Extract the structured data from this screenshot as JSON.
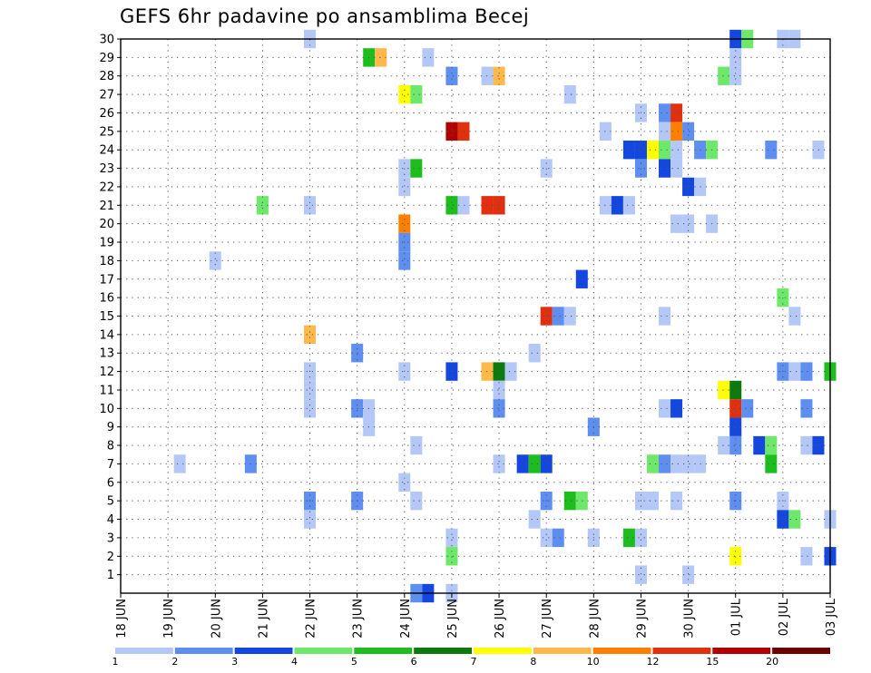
{
  "chart_data": {
    "type": "heatmap",
    "title": "GEFS 6hr padavine po ansamblima Becej",
    "xlabel": "",
    "ylabel": "",
    "x_unit": "6-hour step (0 = 18 JUN 00Z)",
    "x_range": [
      0,
      60
    ],
    "x_ticks": [
      {
        "step": 0,
        "label": "18 JUN"
      },
      {
        "step": 4,
        "label": "19 JUN"
      },
      {
        "step": 8,
        "label": "20 JUN"
      },
      {
        "step": 12,
        "label": "21 JUN"
      },
      {
        "step": 16,
        "label": "22 JUN"
      },
      {
        "step": 20,
        "label": "23 JUN"
      },
      {
        "step": 24,
        "label": "24 JUN"
      },
      {
        "step": 28,
        "label": "25 JUN"
      },
      {
        "step": 32,
        "label": "26 JUN"
      },
      {
        "step": 36,
        "label": "27 JUN"
      },
      {
        "step": 40,
        "label": "28 JUN"
      },
      {
        "step": 44,
        "label": "29 JUN"
      },
      {
        "step": 48,
        "label": "30 JUN"
      },
      {
        "step": 52,
        "label": "01 JUL"
      },
      {
        "step": 56,
        "label": "02 JUL"
      },
      {
        "step": 60,
        "label": "03 JUL"
      }
    ],
    "y_range": [
      0,
      30
    ],
    "y_ticks": [
      "1",
      "2",
      "3",
      "4",
      "5",
      "6",
      "7",
      "8",
      "9",
      "10",
      "11",
      "12",
      "13",
      "14",
      "15",
      "16",
      "17",
      "18",
      "19",
      "20",
      "21",
      "22",
      "23",
      "24",
      "25",
      "26",
      "27",
      "28",
      "29",
      "30"
    ],
    "grid": true,
    "legend": {
      "placement": "bottom",
      "colors": [
        "#b3c8f7",
        "#5d8ef0",
        "#1446e0",
        "#6ee86a",
        "#1dbd1d",
        "#0d7a0d",
        "#ffff00",
        "#ffb84a",
        "#ff8000",
        "#e03010",
        "#b00000",
        "#6e0000"
      ],
      "labels": [
        "1",
        "2",
        "3",
        "4",
        "5",
        "6",
        "7",
        "8",
        "10",
        "12",
        "15",
        "20"
      ]
    },
    "cells_encoding": "[step, member, class] where class indexes legend.colors",
    "cells": [
      [
        16,
        30,
        0
      ],
      [
        52,
        30,
        2
      ],
      [
        53,
        30,
        3
      ],
      [
        56,
        30,
        0
      ],
      [
        57,
        30,
        0
      ],
      [
        21,
        29,
        4
      ],
      [
        22,
        29,
        7
      ],
      [
        26,
        29,
        0
      ],
      [
        52,
        29,
        0
      ],
      [
        28,
        28,
        1
      ],
      [
        31,
        28,
        0
      ],
      [
        32,
        28,
        7
      ],
      [
        51,
        28,
        3
      ],
      [
        52,
        28,
        0
      ],
      [
        24,
        27,
        6
      ],
      [
        25,
        27,
        3
      ],
      [
        38,
        27,
        0
      ],
      [
        44,
        26,
        0
      ],
      [
        46,
        26,
        1
      ],
      [
        47,
        26,
        9
      ],
      [
        28,
        25,
        10
      ],
      [
        29,
        25,
        9
      ],
      [
        41,
        25,
        0
      ],
      [
        46,
        25,
        0
      ],
      [
        47,
        25,
        8
      ],
      [
        48,
        25,
        1
      ],
      [
        43,
        24,
        2
      ],
      [
        44,
        24,
        2
      ],
      [
        45,
        24,
        6
      ],
      [
        46,
        24,
        3
      ],
      [
        47,
        24,
        0
      ],
      [
        49,
        24,
        1
      ],
      [
        50,
        24,
        3
      ],
      [
        55,
        24,
        1
      ],
      [
        59,
        24,
        0
      ],
      [
        24,
        23,
        0
      ],
      [
        25,
        23,
        4
      ],
      [
        36,
        23,
        0
      ],
      [
        44,
        23,
        1
      ],
      [
        46,
        23,
        2
      ],
      [
        47,
        23,
        0
      ],
      [
        24,
        22,
        0
      ],
      [
        48,
        22,
        2
      ],
      [
        49,
        22,
        0
      ],
      [
        12,
        21,
        3
      ],
      [
        16,
        21,
        0
      ],
      [
        28,
        21,
        4
      ],
      [
        29,
        21,
        0
      ],
      [
        31,
        21,
        9
      ],
      [
        32,
        21,
        9
      ],
      [
        41,
        21,
        0
      ],
      [
        42,
        21,
        2
      ],
      [
        43,
        21,
        0
      ],
      [
        24,
        20,
        8
      ],
      [
        47,
        20,
        0
      ],
      [
        48,
        20,
        0
      ],
      [
        50,
        20,
        0
      ],
      [
        24,
        19,
        1
      ],
      [
        8,
        18,
        0
      ],
      [
        24,
        18,
        1
      ],
      [
        39,
        17,
        2
      ],
      [
        56,
        16,
        3
      ],
      [
        36,
        15,
        9
      ],
      [
        37,
        15,
        1
      ],
      [
        38,
        15,
        0
      ],
      [
        46,
        15,
        0
      ],
      [
        57,
        15,
        0
      ],
      [
        16,
        14,
        7
      ],
      [
        20,
        13,
        1
      ],
      [
        35,
        13,
        0
      ],
      [
        16,
        12,
        0
      ],
      [
        24,
        12,
        0
      ],
      [
        28,
        12,
        2
      ],
      [
        31,
        12,
        7
      ],
      [
        32,
        12,
        5
      ],
      [
        33,
        12,
        0
      ],
      [
        56,
        12,
        1
      ],
      [
        57,
        12,
        0
      ],
      [
        58,
        12,
        1
      ],
      [
        60,
        12,
        4
      ],
      [
        16,
        11,
        0
      ],
      [
        32,
        11,
        0
      ],
      [
        51,
        11,
        6
      ],
      [
        52,
        11,
        5
      ],
      [
        16,
        10,
        0
      ],
      [
        20,
        10,
        1
      ],
      [
        21,
        10,
        0
      ],
      [
        32,
        10,
        1
      ],
      [
        46,
        10,
        0
      ],
      [
        47,
        10,
        2
      ],
      [
        52,
        10,
        9
      ],
      [
        53,
        10,
        1
      ],
      [
        58,
        10,
        1
      ],
      [
        21,
        9,
        0
      ],
      [
        40,
        9,
        1
      ],
      [
        52,
        9,
        2
      ],
      [
        25,
        8,
        0
      ],
      [
        51,
        8,
        0
      ],
      [
        52,
        8,
        1
      ],
      [
        54,
        8,
        2
      ],
      [
        55,
        8,
        3
      ],
      [
        58,
        8,
        0
      ],
      [
        59,
        8,
        2
      ],
      [
        5,
        7,
        0
      ],
      [
        11,
        7,
        1
      ],
      [
        32,
        7,
        0
      ],
      [
        34,
        7,
        2
      ],
      [
        35,
        7,
        4
      ],
      [
        36,
        7,
        2
      ],
      [
        45,
        7,
        3
      ],
      [
        46,
        7,
        1
      ],
      [
        47,
        7,
        0
      ],
      [
        48,
        7,
        0
      ],
      [
        49,
        7,
        0
      ],
      [
        55,
        7,
        4
      ],
      [
        24,
        6,
        0
      ],
      [
        16,
        5,
        1
      ],
      [
        20,
        5,
        1
      ],
      [
        25,
        5,
        0
      ],
      [
        36,
        5,
        1
      ],
      [
        38,
        5,
        4
      ],
      [
        39,
        5,
        3
      ],
      [
        44,
        5,
        0
      ],
      [
        45,
        5,
        0
      ],
      [
        47,
        5,
        0
      ],
      [
        52,
        5,
        1
      ],
      [
        56,
        5,
        0
      ],
      [
        16,
        4,
        0
      ],
      [
        35,
        4,
        0
      ],
      [
        56,
        4,
        2
      ],
      [
        57,
        4,
        3
      ],
      [
        60,
        4,
        0
      ],
      [
        28,
        3,
        0
      ],
      [
        36,
        3,
        0
      ],
      [
        37,
        3,
        1
      ],
      [
        40,
        3,
        0
      ],
      [
        43,
        3,
        4
      ],
      [
        44,
        3,
        0
      ],
      [
        28,
        2,
        3
      ],
      [
        52,
        2,
        6
      ],
      [
        58,
        2,
        0
      ],
      [
        60,
        2,
        2
      ],
      [
        44,
        1,
        0
      ],
      [
        48,
        1,
        0
      ],
      [
        25,
        0,
        1
      ],
      [
        26,
        0,
        2
      ],
      [
        28,
        0,
        0
      ]
    ]
  }
}
